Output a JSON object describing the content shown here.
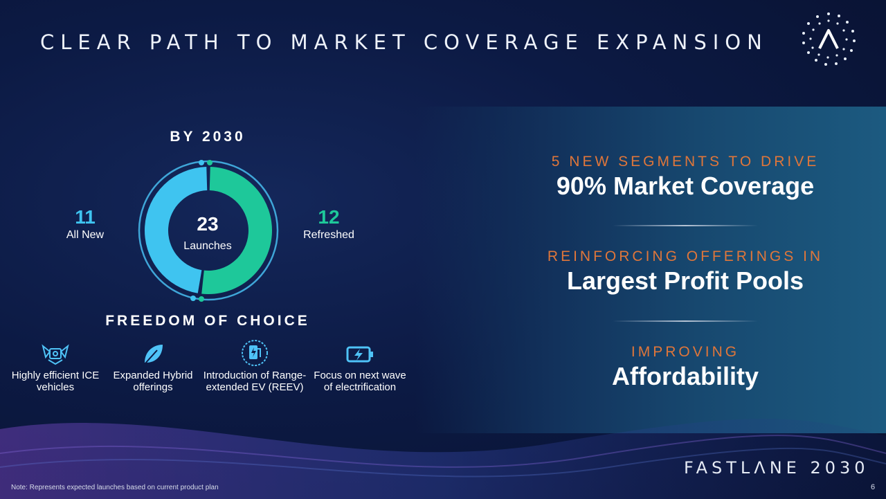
{
  "slide": {
    "title": "CLEAR PATH TO MARKET COVERAGE EXPANSION",
    "page_number": "6",
    "note": "Note: Represents expected launches based on current product plan",
    "brand": "FASTLΛNE 2030"
  },
  "launches": {
    "heading": "BY 2030",
    "total_value": "23",
    "total_label": "Launches",
    "all_new": {
      "value": "11",
      "label": "All New",
      "color": "#3fc4f0"
    },
    "refreshed": {
      "value": "12",
      "label": "Refreshed",
      "color": "#1ec89a"
    }
  },
  "choice": {
    "heading": "FREEDOM OF CHOICE",
    "items": [
      {
        "icon": "engine-icon",
        "label": "Highly efficient ICE vehicles"
      },
      {
        "icon": "leaf-icon",
        "label": "Expanded Hybrid offerings"
      },
      {
        "icon": "ev-charger-icon",
        "label": "Introduction of Range-extended EV (REEV)"
      },
      {
        "icon": "battery-charge-icon",
        "label": "Focus on next wave of electrification"
      }
    ]
  },
  "segments": [
    {
      "kicker": "5 NEW SEGMENTS TO DRIVE",
      "headline": "90% Market Coverage"
    },
    {
      "kicker": "REINFORCING OFFERINGS IN",
      "headline": "Largest Profit Pools"
    },
    {
      "kicker": "IMPROVING",
      "headline": "Affordability"
    }
  ],
  "colors": {
    "accent_orange": "#e0763a",
    "icon_blue": "#4fc3f7",
    "background": "#0c1a44"
  }
}
